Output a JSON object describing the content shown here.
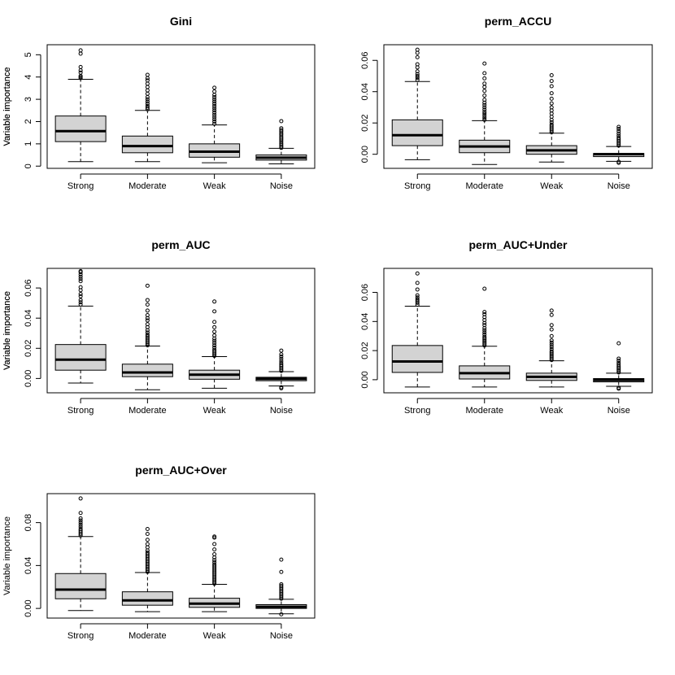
{
  "chart_data": [
    {
      "type": "boxplot",
      "title": "Gini",
      "ylabel": "Variable importance",
      "xlabel": "",
      "categories": [
        "Strong",
        "Moderate",
        "Weak",
        "Noise"
      ],
      "ylim": [
        -0.1,
        5.45
      ],
      "yticks": [
        0,
        1,
        2,
        3,
        4,
        5
      ],
      "ytick_labels": [
        "0",
        "1",
        "2",
        "3",
        "4",
        "5"
      ],
      "boxes": [
        {
          "whisker_low": 0.2,
          "q1": 1.1,
          "median": 1.57,
          "q3": 2.25,
          "whisker_high": 3.9,
          "outliers": [
            3.95,
            4.0,
            4.05,
            4.2,
            4.3,
            4.45,
            5.05,
            5.2
          ]
        },
        {
          "whisker_low": 0.2,
          "q1": 0.6,
          "median": 0.9,
          "q3": 1.35,
          "whisker_high": 2.5,
          "outliers": [
            2.55,
            2.62,
            2.7,
            2.8,
            2.9,
            3.0,
            3.1,
            3.25,
            3.4,
            3.55,
            3.7,
            3.85,
            3.95,
            4.1
          ]
        },
        {
          "whisker_low": 0.15,
          "q1": 0.4,
          "median": 0.65,
          "q3": 1.0,
          "whisker_high": 1.85,
          "outliers": [
            1.9,
            2.0,
            2.1,
            2.2,
            2.3,
            2.4,
            2.5,
            2.6,
            2.7,
            2.8,
            2.9,
            3.0,
            3.1,
            3.2,
            3.35,
            3.52
          ]
        },
        {
          "whisker_low": 0.1,
          "q1": 0.27,
          "median": 0.38,
          "q3": 0.5,
          "whisker_high": 0.8,
          "outliers": [
            0.82,
            0.88,
            0.95,
            1.02,
            1.1,
            1.18,
            1.25,
            1.32,
            1.4,
            1.47,
            1.55,
            1.62,
            1.7,
            2.02
          ]
        }
      ]
    },
    {
      "type": "boxplot",
      "title": "perm_ACCU",
      "ylabel": "Variable importance",
      "xlabel": "",
      "categories": [
        "Strong",
        "Moderate",
        "Weak",
        "Noise"
      ],
      "ylim": [
        -0.009,
        0.07
      ],
      "yticks": [
        0,
        0.02,
        0.04,
        0.06
      ],
      "ytick_labels": [
        "0.00",
        "0.02",
        "0.04",
        "0.06"
      ],
      "boxes": [
        {
          "whisker_low": -0.0035,
          "q1": 0.0055,
          "median": 0.0122,
          "q3": 0.022,
          "whisker_high": 0.0465,
          "outliers": [
            0.0475,
            0.0488,
            0.05,
            0.0512,
            0.053,
            0.0555,
            0.0575,
            0.062,
            0.0648,
            0.0668
          ]
        },
        {
          "whisker_low": -0.0065,
          "q1": 0.001,
          "median": 0.005,
          "q3": 0.009,
          "whisker_high": 0.0215,
          "outliers": [
            0.022,
            0.0232,
            0.0245,
            0.0258,
            0.027,
            0.0285,
            0.03,
            0.0315,
            0.033,
            0.0348,
            0.0375,
            0.0405,
            0.043,
            0.0452,
            0.0485,
            0.0518,
            0.058
          ]
        },
        {
          "whisker_low": -0.005,
          "q1": 0.0,
          "median": 0.0025,
          "q3": 0.0055,
          "whisker_high": 0.0135,
          "outliers": [
            0.014,
            0.015,
            0.016,
            0.017,
            0.018,
            0.019,
            0.0205,
            0.022,
            0.024,
            0.026,
            0.028,
            0.03,
            0.0325,
            0.0355,
            0.039,
            0.0435,
            0.0468,
            0.0505
          ]
        },
        {
          "whisker_low": -0.0045,
          "q1": -0.0015,
          "median": 0.0,
          "q3": 0.0005,
          "whisker_high": 0.005,
          "outliers": [
            0.0055,
            0.0065,
            0.0075,
            0.0085,
            0.0095,
            0.0105,
            0.0118,
            0.0132,
            0.0148,
            0.0162,
            0.0175,
            -0.0048,
            -0.0055
          ]
        }
      ]
    },
    {
      "type": "boxplot",
      "title": "perm_AUC",
      "ylabel": "Variable importance",
      "xlabel": "",
      "categories": [
        "Strong",
        "Moderate",
        "Weak",
        "Noise"
      ],
      "ylim": [
        -0.0095,
        0.073
      ],
      "yticks": [
        0,
        0.02,
        0.04,
        0.06
      ],
      "ytick_labels": [
        "0.00",
        "0.02",
        "0.04",
        "0.06"
      ],
      "boxes": [
        {
          "whisker_low": -0.003,
          "q1": 0.0055,
          "median": 0.0125,
          "q3": 0.0225,
          "whisker_high": 0.048,
          "outliers": [
            0.049,
            0.0505,
            0.052,
            0.0545,
            0.056,
            0.0585,
            0.0605,
            0.0645,
            0.066,
            0.0675,
            0.069,
            0.0705,
            0.0712
          ]
        },
        {
          "whisker_low": -0.0075,
          "q1": 0.0012,
          "median": 0.004,
          "q3": 0.0095,
          "whisker_high": 0.0215,
          "outliers": [
            0.022,
            0.023,
            0.024,
            0.025,
            0.026,
            0.027,
            0.028,
            0.029,
            0.0305,
            0.032,
            0.034,
            0.036,
            0.0385,
            0.04,
            0.042,
            0.045,
            0.049,
            0.052,
            0.0615
          ]
        },
        {
          "whisker_low": -0.0065,
          "q1": -0.0005,
          "median": 0.0025,
          "q3": 0.0055,
          "whisker_high": 0.0145,
          "outliers": [
            0.015,
            0.016,
            0.017,
            0.018,
            0.019,
            0.0205,
            0.022,
            0.0235,
            0.025,
            0.0265,
            0.0285,
            0.031,
            0.034,
            0.0375,
            0.0445,
            0.051
          ]
        },
        {
          "whisker_low": -0.005,
          "q1": -0.0015,
          "median": -0.0002,
          "q3": 0.0008,
          "whisker_high": 0.0045,
          "outliers": [
            0.005,
            0.006,
            0.007,
            0.008,
            0.009,
            0.0102,
            0.0115,
            0.013,
            0.0145,
            0.016,
            0.0185,
            -0.0058,
            -0.0065
          ]
        }
      ]
    },
    {
      "type": "boxplot",
      "title": "perm_AUC+Under",
      "ylabel": "Variable importance",
      "xlabel": "",
      "categories": [
        "Strong",
        "Moderate",
        "Weak",
        "Noise"
      ],
      "ylim": [
        -0.009,
        0.0765
      ],
      "yticks": [
        0,
        0.02,
        0.04,
        0.06
      ],
      "ytick_labels": [
        "0.00",
        "0.02",
        "0.04",
        "0.06"
      ],
      "boxes": [
        {
          "whisker_low": -0.005,
          "q1": 0.005,
          "median": 0.0125,
          "q3": 0.0235,
          "whisker_high": 0.0505,
          "outliers": [
            0.0515,
            0.0528,
            0.054,
            0.0552,
            0.0565,
            0.058,
            0.062,
            0.0665,
            0.073
          ]
        },
        {
          "whisker_low": -0.005,
          "q1": 0.0005,
          "median": 0.0045,
          "q3": 0.0095,
          "whisker_high": 0.023,
          "outliers": [
            0.0235,
            0.0245,
            0.0255,
            0.0265,
            0.0275,
            0.0285,
            0.0295,
            0.031,
            0.0325,
            0.034,
            0.0355,
            0.0375,
            0.039,
            0.041,
            0.043,
            0.045,
            0.0465,
            0.0625
          ]
        },
        {
          "whisker_low": -0.005,
          "q1": -0.0005,
          "median": 0.002,
          "q3": 0.0045,
          "whisker_high": 0.013,
          "outliers": [
            0.0135,
            0.0145,
            0.0155,
            0.0165,
            0.0175,
            0.0185,
            0.0195,
            0.021,
            0.0225,
            0.024,
            0.0255,
            0.027,
            0.03,
            0.0345,
            0.0375,
            0.0445,
            0.0475
          ]
        },
        {
          "whisker_low": -0.0045,
          "q1": -0.0015,
          "median": -0.0002,
          "q3": 0.0008,
          "whisker_high": 0.0045,
          "outliers": [
            0.005,
            0.006,
            0.007,
            0.008,
            0.009,
            0.0102,
            0.0115,
            0.013,
            0.0145,
            0.025,
            -0.0055,
            -0.0062
          ]
        }
      ]
    },
    {
      "type": "boxplot",
      "title": "perm_AUC+Over",
      "ylabel": "Variable importance",
      "xlabel": "",
      "categories": [
        "Strong",
        "Moderate",
        "Weak",
        "Noise"
      ],
      "ylim": [
        -0.009,
        0.107
      ],
      "yticks": [
        0,
        0.04,
        0.08
      ],
      "ytick_labels": [
        "0.00",
        "0.04",
        "0.08"
      ],
      "boxes": [
        {
          "whisker_low": -0.002,
          "q1": 0.009,
          "median": 0.0175,
          "q3": 0.0325,
          "whisker_high": 0.067,
          "outliers": [
            0.068,
            0.0695,
            0.071,
            0.0725,
            0.074,
            0.076,
            0.078,
            0.08,
            0.082,
            0.084,
            0.089,
            0.1025
          ]
        },
        {
          "whisker_low": -0.003,
          "q1": 0.003,
          "median": 0.0075,
          "q3": 0.0155,
          "whisker_high": 0.0335,
          "outliers": [
            0.034,
            0.0355,
            0.037,
            0.0385,
            0.04,
            0.0415,
            0.043,
            0.0445,
            0.046,
            0.0475,
            0.049,
            0.0505,
            0.052,
            0.054,
            0.057,
            0.06,
            0.064,
            0.0695,
            0.074
          ]
        },
        {
          "whisker_low": -0.003,
          "q1": 0.001,
          "median": 0.0045,
          "q3": 0.0095,
          "whisker_high": 0.0225,
          "outliers": [
            0.023,
            0.0245,
            0.026,
            0.0275,
            0.029,
            0.0305,
            0.032,
            0.0335,
            0.035,
            0.0365,
            0.038,
            0.0395,
            0.041,
            0.043,
            0.045,
            0.0475,
            0.0505,
            0.055,
            0.06,
            0.066,
            0.067
          ]
        },
        {
          "whisker_low": -0.005,
          "q1": 0.0,
          "median": 0.0015,
          "q3": 0.0035,
          "whisker_high": 0.0085,
          "outliers": [
            0.009,
            0.0105,
            0.012,
            0.0135,
            0.015,
            0.0165,
            0.018,
            0.0195,
            0.021,
            0.0225,
            0.034,
            0.0455,
            -0.0055
          ]
        }
      ]
    }
  ]
}
